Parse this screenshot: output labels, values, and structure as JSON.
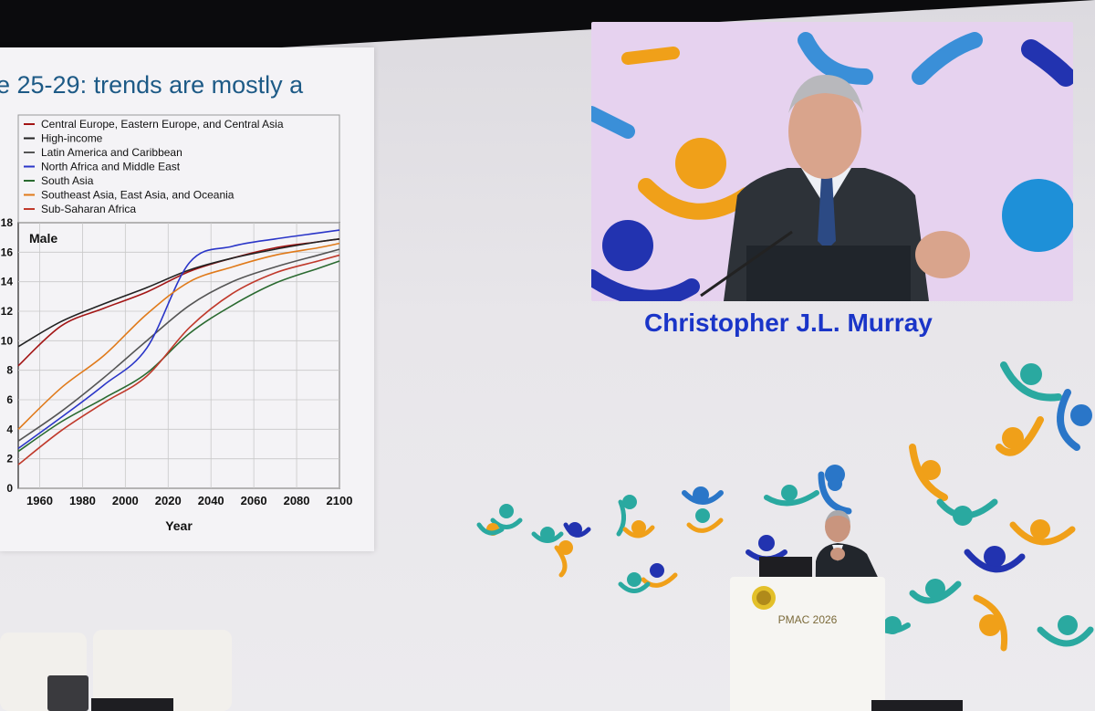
{
  "slide": {
    "title": "e 25-29: trends are mostly a"
  },
  "video": {
    "speaker_name": "Christopher J.L. Murray"
  },
  "podium": {
    "label": "PMAC 2026"
  },
  "chart_data": {
    "type": "line",
    "title": "Male",
    "xlabel": "Year",
    "ylabel": "",
    "xlim": [
      1950,
      2100
    ],
    "ylim": [
      0,
      18
    ],
    "x_ticks": [
      1960,
      1980,
      2000,
      2020,
      2040,
      2060,
      2080,
      2100
    ],
    "y_ticks": [
      0,
      2,
      4,
      6,
      8,
      10,
      12,
      14,
      16,
      18
    ],
    "grid": true,
    "legend_position": "top",
    "x": [
      1950,
      1970,
      1990,
      2010,
      2030,
      2050,
      2070,
      2090,
      2100
    ],
    "series": [
      {
        "name": "Central Europe, Eastern Europe, and Central Asia",
        "color": "#a31515",
        "values": [
          8.3,
          11.0,
          12.2,
          13.3,
          14.7,
          15.6,
          16.3,
          16.7,
          16.9
        ]
      },
      {
        "name": "High-income",
        "color": "#222222",
        "values": [
          9.6,
          11.3,
          12.5,
          13.6,
          14.8,
          15.6,
          16.2,
          16.7,
          16.9
        ]
      },
      {
        "name": "Latin America and Caribbean",
        "color": "#555555",
        "values": [
          3.2,
          5.2,
          7.5,
          10.0,
          12.4,
          14.0,
          15.0,
          15.8,
          16.2
        ]
      },
      {
        "name": "North Africa and Middle East",
        "color": "#2a35c8",
        "values": [
          2.7,
          4.8,
          7.0,
          9.5,
          15.3,
          16.4,
          16.9,
          17.3,
          17.5
        ]
      },
      {
        "name": "South Asia",
        "color": "#2a6a30",
        "values": [
          2.5,
          4.5,
          6.1,
          7.8,
          10.5,
          12.4,
          13.9,
          14.9,
          15.4
        ]
      },
      {
        "name": "Southeast Asia, East Asia, and Oceania",
        "color": "#e07a1a",
        "values": [
          4.0,
          6.8,
          9.0,
          11.8,
          14.0,
          15.0,
          15.8,
          16.3,
          16.6
        ]
      },
      {
        "name": "Sub-Saharan Africa",
        "color": "#c0392b",
        "values": [
          1.6,
          3.9,
          5.8,
          7.6,
          10.9,
          13.2,
          14.6,
          15.4,
          15.8
        ]
      }
    ]
  }
}
